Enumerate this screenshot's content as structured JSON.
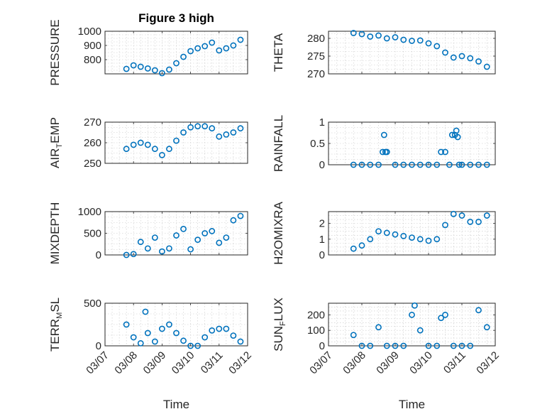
{
  "chart_data": [
    {
      "id": "pressure",
      "type": "scatter",
      "title": "Figure 3 high",
      "ylabel": "PRESSURE",
      "ylim": [
        700,
        1000
      ],
      "yticks": [
        "800",
        "900",
        "1000"
      ],
      "xticks": [
        "03/07",
        "03/08",
        "03/09",
        "03/10",
        "03/11",
        "03/12"
      ],
      "show_xticklabels": false,
      "x": [
        "03/07 18:00",
        "03/08 00:00",
        "03/08 06:00",
        "03/08 12:00",
        "03/08 18:00",
        "03/09 00:00",
        "03/09 06:00",
        "03/09 12:00",
        "03/09 18:00",
        "03/10 00:00",
        "03/10 06:00",
        "03/10 12:00",
        "03/10 18:00",
        "03/11 00:00",
        "03/11 06:00",
        "03/11 12:00",
        "03/11 18:00"
      ],
      "y": [
        735,
        760,
        750,
        738,
        725,
        705,
        730,
        775,
        820,
        860,
        880,
        895,
        920,
        865,
        880,
        900,
        940
      ]
    },
    {
      "id": "theta",
      "type": "scatter",
      "title": "",
      "ylabel": "THETA",
      "ylim": [
        270,
        282
      ],
      "yticks": [
        "270",
        "275",
        "280"
      ],
      "xticks": [
        "03/07",
        "03/08",
        "03/09",
        "03/10",
        "03/11",
        "03/12"
      ],
      "show_xticklabels": false,
      "x": [
        "03/07 18:00",
        "03/08 00:00",
        "03/08 06:00",
        "03/08 12:00",
        "03/08 18:00",
        "03/09 00:00",
        "03/09 06:00",
        "03/09 12:00",
        "03/09 18:00",
        "03/10 00:00",
        "03/10 06:00",
        "03/10 12:00",
        "03/10 18:00",
        "03/11 00:00",
        "03/11 06:00",
        "03/11 12:00",
        "03/11 18:00"
      ],
      "y": [
        281.5,
        281.2,
        280.5,
        280.8,
        280.0,
        280.3,
        279.6,
        279.3,
        279.4,
        278.6,
        277.8,
        276.0,
        274.6,
        275.0,
        274.4,
        273.5,
        272.0
      ]
    },
    {
      "id": "air-temp",
      "type": "scatter",
      "title": "",
      "ylabel": "AIR_TEMP",
      "ylim": [
        250,
        270
      ],
      "yticks": [
        "250",
        "260",
        "270"
      ],
      "xticks": [
        "03/07",
        "03/08",
        "03/09",
        "03/10",
        "03/11",
        "03/12"
      ],
      "show_xticklabels": false,
      "x": [
        "03/07 18:00",
        "03/08 00:00",
        "03/08 06:00",
        "03/08 12:00",
        "03/08 18:00",
        "03/09 00:00",
        "03/09 06:00",
        "03/09 12:00",
        "03/09 18:00",
        "03/10 00:00",
        "03/10 06:00",
        "03/10 12:00",
        "03/10 18:00",
        "03/11 00:00",
        "03/11 06:00",
        "03/11 12:00",
        "03/11 18:00"
      ],
      "y": [
        257,
        259,
        260,
        259,
        257,
        254,
        257,
        261,
        265,
        267.5,
        268,
        268,
        267,
        263,
        264,
        265,
        267
      ]
    },
    {
      "id": "rainfall",
      "type": "scatter",
      "title": "",
      "ylabel": "RAINFALL",
      "ylim": [
        0,
        1
      ],
      "yticks": [
        "0",
        "0.5",
        "1"
      ],
      "xticks": [
        "03/07",
        "03/08",
        "03/09",
        "03/10",
        "03/11",
        "03/12"
      ],
      "show_xticklabels": false,
      "x": [
        "03/07 18:00",
        "03/08 00:00",
        "03/08 06:00",
        "03/08 12:00",
        "03/08 15:00",
        "03/08 16:00",
        "03/08 17:00",
        "03/08 18:00",
        "03/09 00:00",
        "03/09 06:00",
        "03/09 12:00",
        "03/09 18:00",
        "03/10 00:00",
        "03/10 06:00",
        "03/10 09:00",
        "03/10 12:00",
        "03/10 15:00",
        "03/10 17:00",
        "03/10 19:00",
        "03/10 20:00",
        "03/10 21:00",
        "03/10 22:00",
        "03/11 00:00",
        "03/11 06:00",
        "03/11 12:00",
        "03/11 18:00"
      ],
      "y": [
        0,
        0,
        0,
        0,
        0.3,
        0.7,
        0.3,
        0.3,
        0,
        0,
        0,
        0,
        0,
        0,
        0.3,
        0.3,
        0,
        0.7,
        0.7,
        0.8,
        0.65,
        0,
        0,
        0,
        0,
        0
      ]
    },
    {
      "id": "mixdepth",
      "type": "scatter",
      "title": "",
      "ylabel": "MIXDEPTH",
      "ylim": [
        0,
        1000
      ],
      "yticks": [
        "0",
        "500",
        "1000"
      ],
      "xticks": [
        "03/07",
        "03/08",
        "03/09",
        "03/10",
        "03/11",
        "03/12"
      ],
      "show_xticklabels": false,
      "x": [
        "03/07 18:00",
        "03/08 00:00",
        "03/08 06:00",
        "03/08 12:00",
        "03/08 18:00",
        "03/09 00:00",
        "03/09 06:00",
        "03/09 12:00",
        "03/09 18:00",
        "03/10 00:00",
        "03/10 06:00",
        "03/10 12:00",
        "03/10 18:00",
        "03/11 00:00",
        "03/11 06:00",
        "03/11 12:00",
        "03/11 18:00"
      ],
      "y": [
        0,
        20,
        300,
        150,
        400,
        80,
        150,
        450,
        600,
        130,
        350,
        500,
        550,
        280,
        400,
        800,
        900
      ]
    },
    {
      "id": "h2omixra",
      "type": "scatter",
      "title": "",
      "ylabel": "H2OMIXRA",
      "ylim": [
        0,
        2.75
      ],
      "yticks": [
        "0",
        "1",
        "2"
      ],
      "xticks": [
        "03/07",
        "03/08",
        "03/09",
        "03/10",
        "03/11",
        "03/12"
      ],
      "show_xticklabels": false,
      "x": [
        "03/07 18:00",
        "03/08 00:00",
        "03/08 06:00",
        "03/08 12:00",
        "03/08 18:00",
        "03/09 00:00",
        "03/09 06:00",
        "03/09 12:00",
        "03/09 18:00",
        "03/10 00:00",
        "03/10 06:00",
        "03/10 12:00",
        "03/10 18:00",
        "03/11 00:00",
        "03/11 06:00",
        "03/11 12:00",
        "03/11 18:00"
      ],
      "y": [
        0.4,
        0.6,
        1.0,
        1.5,
        1.4,
        1.3,
        1.2,
        1.1,
        1.0,
        0.9,
        1.0,
        1.9,
        2.6,
        2.5,
        2.1,
        2.1,
        2.5
      ]
    },
    {
      "id": "terr-msl",
      "type": "scatter",
      "title": "",
      "ylabel": "TERR_MSL",
      "ylim": [
        0,
        500
      ],
      "yticks": [
        "0",
        "500"
      ],
      "xticks": [
        "03/07",
        "03/08",
        "03/09",
        "03/10",
        "03/11",
        "03/12"
      ],
      "show_xticklabels": true,
      "xlabel": "Time",
      "x": [
        "03/07 18:00",
        "03/08 00:00",
        "03/08 06:00",
        "03/08 10:00",
        "03/08 12:00",
        "03/08 18:00",
        "03/09 00:00",
        "03/09 06:00",
        "03/09 12:00",
        "03/09 18:00",
        "03/10 00:00",
        "03/10 06:00",
        "03/10 12:00",
        "03/10 18:00",
        "03/11 00:00",
        "03/11 06:00",
        "03/11 12:00",
        "03/11 18:00"
      ],
      "y": [
        250,
        100,
        30,
        400,
        150,
        50,
        200,
        250,
        150,
        60,
        0,
        0,
        100,
        180,
        200,
        200,
        120,
        50
      ]
    },
    {
      "id": "sun-flux",
      "type": "scatter",
      "title": "",
      "ylabel": "SUN_FLUX",
      "ylim": [
        0,
        275
      ],
      "yticks": [
        "0",
        "100",
        "200"
      ],
      "xticks": [
        "03/07",
        "03/08",
        "03/09",
        "03/10",
        "03/11",
        "03/12"
      ],
      "show_xticklabels": true,
      "xlabel": "Time",
      "x": [
        "03/07 18:00",
        "03/08 00:00",
        "03/08 06:00",
        "03/08 12:00",
        "03/08 18:00",
        "03/09 00:00",
        "03/09 06:00",
        "03/09 12:00",
        "03/09 14:00",
        "03/09 18:00",
        "03/10 00:00",
        "03/10 06:00",
        "03/10 09:00",
        "03/10 12:00",
        "03/10 18:00",
        "03/11 00:00",
        "03/11 06:00",
        "03/11 12:00",
        "03/11 18:00"
      ],
      "y": [
        70,
        0,
        0,
        120,
        0,
        0,
        0,
        200,
        260,
        100,
        0,
        0,
        180,
        200,
        0,
        0,
        0,
        230,
        120
      ]
    }
  ],
  "style": {
    "marker_color": "#0072bd"
  }
}
